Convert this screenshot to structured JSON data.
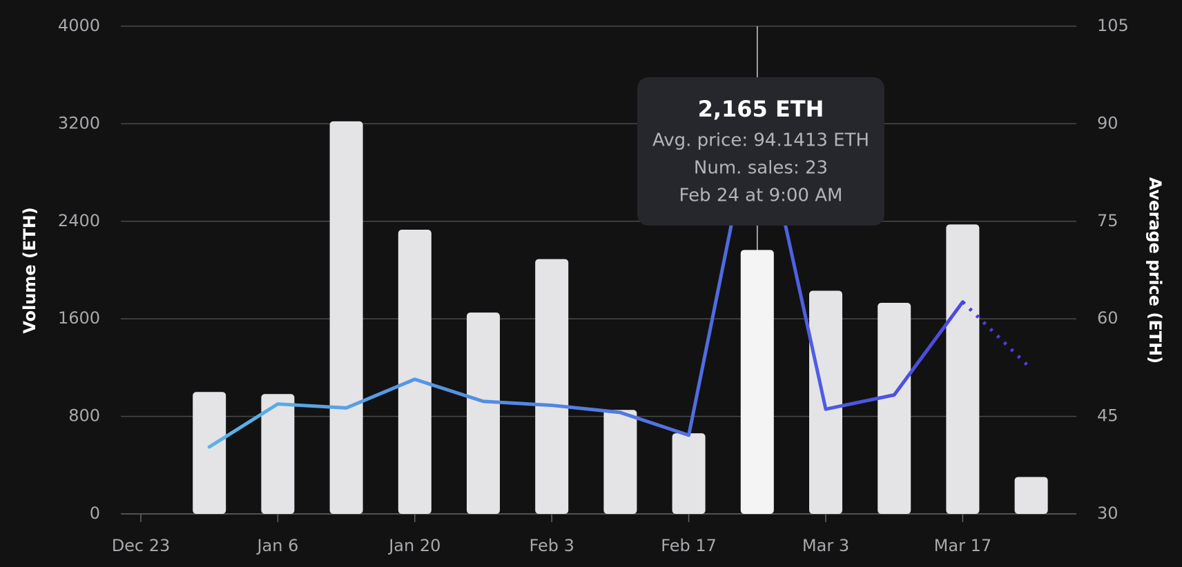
{
  "chart_data": {
    "type": "bar_line",
    "ylabel": "Volume (ETH)",
    "y2label": "Average price (ETH)",
    "categories": [
      "Dec 23",
      null,
      "Jan 6",
      null,
      "Jan 20",
      null,
      "Feb 3",
      null,
      "Feb 17",
      null,
      "Mar 3",
      null,
      "Mar 17",
      null
    ],
    "series": [
      {
        "name": "Volume",
        "type": "bar",
        "color": "#e4e4e7",
        "highlight_color": "#f4f4f5",
        "values": [
          null,
          1000,
          983,
          3220,
          2331,
          1651,
          2090,
          853,
          661,
          2165,
          1830,
          1731,
          2374,
          303
        ]
      },
      {
        "name": "Average price",
        "type": "line",
        "axis": "y2",
        "color_start": "#5ab4e6",
        "color_end": "#4a3ee0",
        "dotted_last": true,
        "values": [
          null,
          40.3,
          46.9,
          46.3,
          50.7,
          47.3,
          46.7,
          45.6,
          42.1,
          94.1413,
          46.1,
          48.3,
          62.6,
          52.3
        ]
      }
    ],
    "ylim": [
      0,
      4000
    ],
    "yticks": [
      0,
      800,
      1600,
      2400,
      3200,
      4000
    ],
    "y2lim": [
      30,
      105
    ],
    "y2ticks": [
      30,
      45,
      60,
      75,
      90,
      105
    ],
    "grid": true,
    "highlight_index": 9,
    "tooltip": {
      "title": "2,165 ETH",
      "lines": [
        "Avg. price: 94.1413 ETH",
        "Num. sales: 23",
        "Feb 24 at 9:00 AM"
      ]
    }
  }
}
